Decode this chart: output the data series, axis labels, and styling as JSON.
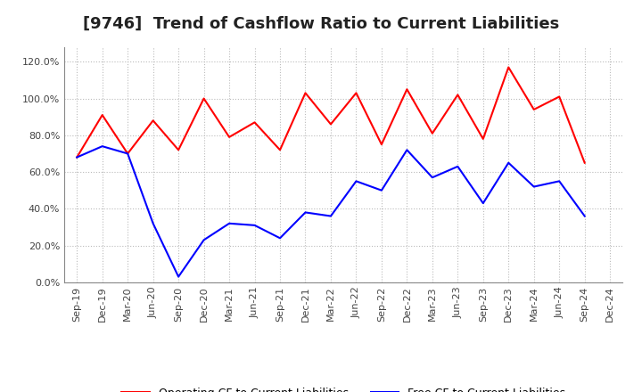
{
  "title": "[9746]  Trend of Cashflow Ratio to Current Liabilities",
  "x_labels": [
    "Sep-19",
    "Dec-19",
    "Mar-20",
    "Jun-20",
    "Sep-20",
    "Dec-20",
    "Mar-21",
    "Jun-21",
    "Sep-21",
    "Dec-21",
    "Mar-22",
    "Jun-22",
    "Sep-22",
    "Dec-22",
    "Mar-23",
    "Jun-23",
    "Sep-23",
    "Dec-23",
    "Mar-24",
    "Jun-24",
    "Sep-24",
    "Dec-24"
  ],
  "operating_cf": [
    0.68,
    0.91,
    0.7,
    0.88,
    0.72,
    1.0,
    0.79,
    0.87,
    0.72,
    1.03,
    0.86,
    1.03,
    0.75,
    1.05,
    0.81,
    1.02,
    0.78,
    1.17,
    0.94,
    1.01,
    0.65,
    null
  ],
  "free_cf": [
    0.68,
    0.74,
    0.7,
    0.32,
    0.03,
    0.23,
    0.32,
    0.31,
    0.24,
    0.38,
    0.36,
    0.55,
    0.5,
    0.72,
    0.57,
    0.63,
    0.43,
    0.65,
    0.52,
    0.55,
    0.36,
    null
  ],
  "ylim": [
    0.0,
    1.28
  ],
  "yticks": [
    0.0,
    0.2,
    0.4,
    0.6,
    0.8,
    1.0,
    1.2
  ],
  "operating_color": "#FF0000",
  "free_color": "#0000FF",
  "grid_color": "#BBBBBB",
  "bg_color": "#FFFFFF",
  "legend_operating": "Operating CF to Current Liabilities",
  "legend_free": "Free CF to Current Liabilities",
  "title_fontsize": 13,
  "tick_fontsize": 8,
  "legend_fontsize": 9
}
